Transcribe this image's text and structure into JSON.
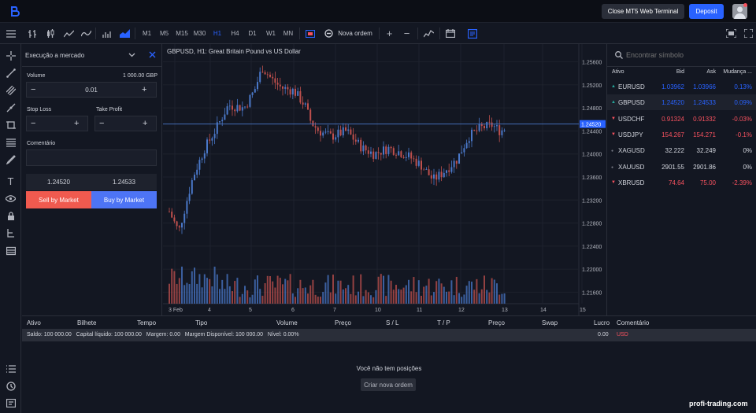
{
  "topbar": {
    "close_label": "Close MT5 Web Terminal",
    "deposit_label": "Deposit"
  },
  "toolbar": {
    "timeframes": [
      "M1",
      "M5",
      "M15",
      "M30",
      "H1",
      "H4",
      "D1",
      "W1",
      "MN"
    ],
    "active_timeframe": "H1",
    "new_order_label": "Nova ordem"
  },
  "order": {
    "mode": "Execução a mercado",
    "volume_label": "Volume",
    "volume_money": "1 000.00 GBP",
    "volume_value": "0.01",
    "stop_loss_label": "Stop Loss",
    "take_profit_label": "Take Profit",
    "comment_label": "Comentário",
    "bid": "1.24520",
    "ask": "1.24533",
    "sell_label": "Sell by Market",
    "buy_label": "Buy by Market"
  },
  "chart": {
    "title": "GBPUSD, H1: Great Britain Pound vs US Dollar",
    "current_price": "1.24520",
    "y_ticks": [
      "1.25600",
      "1.25200",
      "1.24800",
      "1.24400",
      "1.24000",
      "1.23600",
      "1.23200",
      "1.22800",
      "1.22400",
      "1.22000",
      "1.21600"
    ],
    "x_ticks": [
      "3 Feb",
      "4",
      "5",
      "6",
      "7",
      "10",
      "11",
      "12",
      "13",
      "14",
      "15"
    ]
  },
  "watch": {
    "search_placeholder": "Encontrar símbolo",
    "headers": {
      "asset": "Ativo",
      "bid": "Bid",
      "ask": "Ask",
      "change": "Mudança ..."
    },
    "rows": [
      {
        "symbol": "EURUSD",
        "bid": "1.03962",
        "ask": "1.03966",
        "change": "0.13%",
        "dir": "up",
        "color": "#2962ff"
      },
      {
        "symbol": "GBPUSD",
        "bid": "1.24520",
        "ask": "1.24533",
        "change": "0.09%",
        "dir": "up",
        "color": "#2962ff"
      },
      {
        "symbol": "USDCHF",
        "bid": "0.91324",
        "ask": "0.91332",
        "change": "-0.03%",
        "dir": "down",
        "color": "#f7525f"
      },
      {
        "symbol": "USDJPY",
        "bid": "154.267",
        "ask": "154.271",
        "change": "-0.1%",
        "dir": "down",
        "color": "#f7525f"
      },
      {
        "symbol": "XAGUSD",
        "bid": "32.222",
        "ask": "32.249",
        "change": "0%",
        "dir": "flat",
        "color": "#d1d4dc"
      },
      {
        "symbol": "XAUUSD",
        "bid": "2901.55",
        "ask": "2901.86",
        "change": "0%",
        "dir": "flat",
        "color": "#d1d4dc"
      },
      {
        "symbol": "XBRUSD",
        "bid": "74.64",
        "ask": "75.00",
        "change": "-2.39%",
        "dir": "down",
        "color": "#f7525f"
      }
    ]
  },
  "positions": {
    "headers": [
      "Ativo",
      "Bilhete",
      "Tempo",
      "Tipo",
      "Volume",
      "Preço",
      "S / L",
      "T / P",
      "Preço",
      "Swap",
      "Lucro",
      "Comentário"
    ],
    "summary": "Saldo: 100 000.00   Capital líquido: 100 000.00   Margem: 0.00   Margem Disponível: 100 000.00   Nível: 0.00%",
    "profit": "0.00",
    "currency": "USD",
    "empty_text": "Você não tem posições",
    "create_label": "Criar nova ordem"
  },
  "watermark": "profi-trading.com"
}
